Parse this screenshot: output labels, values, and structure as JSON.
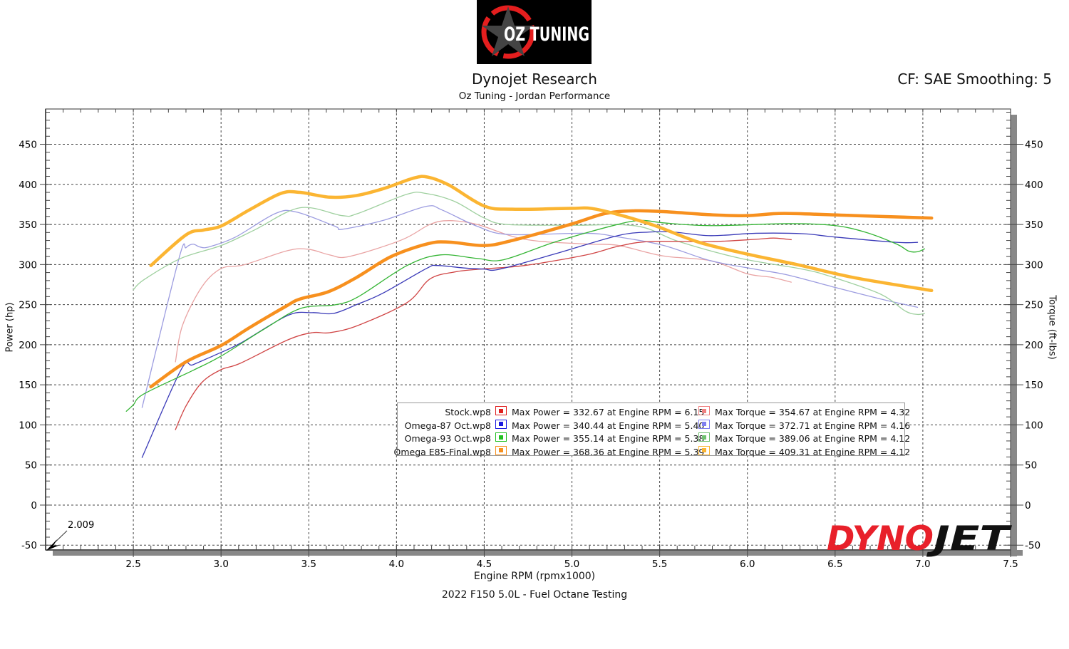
{
  "header": {
    "logo_text": "OZ TUNING",
    "title": "Dynojet Research",
    "subtitle": "Oz Tuning - Jordan Performance",
    "correction": "CF: SAE Smoothing: 5"
  },
  "footer": "2022 F150 5.0L - Fuel Octane Testing",
  "brand_logo_text": "DYNOJET",
  "chart_data": {
    "type": "line",
    "title": "Dynojet Research",
    "xlabel": "Engine RPM (rpmx1000)",
    "ylabel": "Power (hp)",
    "y2label": "Torque (ft-lbs)",
    "xlim": [
      2.0,
      7.5
    ],
    "ylim": [
      -56,
      494
    ],
    "grid": true,
    "legend_position": "bottom-center",
    "cursor_readout": "2.009",
    "x_ticks": [
      "2.5",
      "3.0",
      "3.5",
      "4.0",
      "4.5",
      "5.0",
      "5.5",
      "6.0",
      "6.5",
      "7.0",
      "7.5"
    ],
    "y_ticks": [
      "-50",
      "0",
      "50",
      "100",
      "150",
      "200",
      "250",
      "300",
      "350",
      "400",
      "450"
    ],
    "series": [
      {
        "name": "Stock.wp8",
        "kind": "power",
        "color": "#d04545",
        "width": 1.3,
        "max_label": "Max Power = 332.67 at Engine RPM = 6.15",
        "points": [
          [
            2.74,
            94
          ],
          [
            2.8,
            123.5
          ],
          [
            2.89,
            152.8
          ],
          [
            3.0,
            168.9
          ],
          [
            3.11,
            176.9
          ],
          [
            3.38,
            206
          ],
          [
            3.52,
            215
          ],
          [
            3.62,
            215
          ],
          [
            3.78,
            224
          ],
          [
            4.06,
            252.5
          ],
          [
            4.19,
            281.9
          ],
          [
            4.33,
            290.7
          ],
          [
            4.46,
            294
          ],
          [
            4.73,
            298.8
          ],
          [
            5.08,
            312
          ],
          [
            5.26,
            322.6
          ],
          [
            5.44,
            328.6
          ],
          [
            5.79,
            328.6
          ],
          [
            6.05,
            331.5
          ],
          [
            6.15,
            333
          ],
          [
            6.25,
            331
          ]
        ]
      },
      {
        "name": "Stock.wp8",
        "kind": "torque",
        "color": "#e9a3a3",
        "width": 1.3,
        "max_label": "Max Torque = 354.67 at Engine RPM = 4.32",
        "points": [
          [
            2.74,
            178.6
          ],
          [
            2.78,
            224
          ],
          [
            2.89,
            272
          ],
          [
            3.0,
            295
          ],
          [
            3.13,
            299.6
          ],
          [
            3.38,
            317.4
          ],
          [
            3.5,
            319
          ],
          [
            3.62,
            312
          ],
          [
            3.73,
            310
          ],
          [
            4.03,
            330.8
          ],
          [
            4.19,
            350
          ],
          [
            4.3,
            354.8
          ],
          [
            4.46,
            350
          ],
          [
            4.73,
            331.5
          ],
          [
            5.08,
            325.6
          ],
          [
            5.26,
            324
          ],
          [
            5.52,
            310.7
          ],
          [
            5.79,
            304.8
          ],
          [
            6.0,
            288.4
          ],
          [
            6.14,
            284
          ],
          [
            6.25,
            278
          ]
        ]
      },
      {
        "name": "Omega-87 Oct.wp8",
        "kind": "power",
        "color": "#3a3ab8",
        "width": 1.3,
        "max_label": "Max Power = 340.44 at Engine RPM = 5.40",
        "points": [
          [
            2.55,
            59.4
          ],
          [
            2.77,
            168
          ],
          [
            2.84,
            175
          ],
          [
            2.97,
            187.5
          ],
          [
            3.11,
            201.8
          ],
          [
            3.38,
            236.5
          ],
          [
            3.52,
            240
          ],
          [
            3.64,
            239
          ],
          [
            3.78,
            250.7
          ],
          [
            3.92,
            264
          ],
          [
            4.17,
            295
          ],
          [
            4.23,
            298.8
          ],
          [
            4.38,
            295.8
          ],
          [
            4.5,
            294.3
          ],
          [
            4.59,
            294.3
          ],
          [
            4.91,
            313.7
          ],
          [
            5.26,
            336
          ],
          [
            5.44,
            340.5
          ],
          [
            5.58,
            340.5
          ],
          [
            5.79,
            336
          ],
          [
            6.05,
            339
          ],
          [
            6.32,
            338.4
          ],
          [
            6.49,
            334.5
          ],
          [
            6.85,
            327.7
          ],
          [
            6.97,
            327.7
          ]
        ]
      },
      {
        "name": "Omega-87 Oct.wp8",
        "kind": "torque",
        "color": "#9c9ce0",
        "width": 1.3,
        "max_label": "Max Torque = 372.71 at Engine RPM = 4.16",
        "points": [
          [
            2.55,
            121.7
          ],
          [
            2.76,
            307.6
          ],
          [
            2.8,
            321
          ],
          [
            2.84,
            325.4
          ],
          [
            2.88,
            321.9
          ],
          [
            2.93,
            322
          ],
          [
            3.08,
            334
          ],
          [
            3.31,
            363.7
          ],
          [
            3.43,
            365.5
          ],
          [
            3.65,
            347.7
          ],
          [
            3.69,
            344
          ],
          [
            3.92,
            354.8
          ],
          [
            4.17,
            372.6
          ],
          [
            4.26,
            368
          ],
          [
            4.46,
            347.7
          ],
          [
            4.64,
            337.5
          ],
          [
            5.08,
            339
          ],
          [
            5.26,
            334.5
          ],
          [
            5.52,
            324
          ],
          [
            5.79,
            304.8
          ],
          [
            6.05,
            294
          ],
          [
            6.23,
            287
          ],
          [
            6.49,
            272
          ],
          [
            6.76,
            257
          ],
          [
            6.97,
            246.7
          ]
        ]
      },
      {
        "name": "Omega-93 Oct.wp8",
        "kind": "power",
        "color": "#35b535",
        "width": 1.3,
        "max_label": "Max Power = 355.14 at Engine RPM = 5.38",
        "points": [
          [
            2.46,
            117
          ],
          [
            2.5,
            125
          ],
          [
            2.56,
            138.6
          ],
          [
            2.84,
            168
          ],
          [
            3.0,
            185.8
          ],
          [
            3.24,
            218.7
          ],
          [
            3.45,
            245
          ],
          [
            3.65,
            249.8
          ],
          [
            3.78,
            259.6
          ],
          [
            4.06,
            298.8
          ],
          [
            4.25,
            312
          ],
          [
            4.46,
            307.6
          ],
          [
            4.61,
            306
          ],
          [
            4.91,
            328.6
          ],
          [
            5.26,
            350
          ],
          [
            5.4,
            355
          ],
          [
            5.52,
            352
          ],
          [
            5.79,
            348.5
          ],
          [
            6.23,
            351
          ],
          [
            6.49,
            348.8
          ],
          [
            6.67,
            340.5
          ],
          [
            6.85,
            325.6
          ],
          [
            6.92,
            316.7
          ],
          [
            6.97,
            316
          ],
          [
            7.01,
            319.6
          ]
        ]
      },
      {
        "name": "Omega-93 Oct.wp8",
        "kind": "torque",
        "color": "#9fd09f",
        "width": 1.3,
        "max_label": "Max Torque = 389.06 at Engine RPM = 4.12",
        "points": [
          [
            2.5,
            268.5
          ],
          [
            2.56,
            281
          ],
          [
            2.77,
            307.6
          ],
          [
            3.0,
            323.7
          ],
          [
            3.19,
            343
          ],
          [
            3.45,
            370.8
          ],
          [
            3.69,
            361
          ],
          [
            3.78,
            363.7
          ],
          [
            4.06,
            387.7
          ],
          [
            4.17,
            388.6
          ],
          [
            4.33,
            378.8
          ],
          [
            4.5,
            358
          ],
          [
            4.63,
            350
          ],
          [
            5.0,
            349
          ],
          [
            5.37,
            348
          ],
          [
            5.61,
            328.6
          ],
          [
            5.96,
            307.7
          ],
          [
            6.32,
            294
          ],
          [
            6.49,
            284
          ],
          [
            6.76,
            263
          ],
          [
            6.9,
            242
          ],
          [
            6.97,
            237.8
          ],
          [
            7.01,
            239
          ]
        ]
      },
      {
        "name": "Omega E85-Final.wp8",
        "kind": "power",
        "color": "#f7901e",
        "width": 4.5,
        "max_label": "Max Power = 368.36 at Engine RPM = 5.39",
        "points": [
          [
            2.6,
            147.5
          ],
          [
            2.8,
            178.6
          ],
          [
            3.0,
            199
          ],
          [
            3.16,
            221
          ],
          [
            3.37,
            248
          ],
          [
            3.45,
            257
          ],
          [
            3.61,
            266
          ],
          [
            3.77,
            283.6
          ],
          [
            3.97,
            310
          ],
          [
            4.18,
            326
          ],
          [
            4.3,
            328
          ],
          [
            4.5,
            323.7
          ],
          [
            4.66,
            330
          ],
          [
            4.99,
            350
          ],
          [
            5.19,
            363.7
          ],
          [
            5.36,
            367
          ],
          [
            5.52,
            366
          ],
          [
            5.8,
            362
          ],
          [
            6.0,
            361
          ],
          [
            6.21,
            363.7
          ],
          [
            6.61,
            361
          ],
          [
            7.05,
            358
          ]
        ]
      },
      {
        "name": "Omega E85-Final.wp8",
        "kind": "torque",
        "color": "#fbb532",
        "width": 4.5,
        "max_label": "Max Torque = 409.31 at Engine RPM = 4.12",
        "points": [
          [
            2.6,
            298.8
          ],
          [
            2.8,
            337
          ],
          [
            2.9,
            343
          ],
          [
            3.0,
            348
          ],
          [
            3.16,
            368
          ],
          [
            3.34,
            388.6
          ],
          [
            3.45,
            390
          ],
          [
            3.62,
            384
          ],
          [
            3.77,
            386
          ],
          [
            3.93,
            395
          ],
          [
            4.1,
            408
          ],
          [
            4.18,
            409
          ],
          [
            4.3,
            399
          ],
          [
            4.5,
            373
          ],
          [
            4.66,
            369
          ],
          [
            4.99,
            370
          ],
          [
            5.11,
            370
          ],
          [
            5.27,
            362
          ],
          [
            5.48,
            348
          ],
          [
            5.72,
            328
          ],
          [
            6.0,
            313
          ],
          [
            6.29,
            299.6
          ],
          [
            6.61,
            283.6
          ],
          [
            7.05,
            267.6
          ]
        ]
      }
    ],
    "legend": [
      {
        "file": "Stock.wp8",
        "power": "Max Power = 332.67 at Engine RPM = 6.15",
        "torque": "Max Torque = 354.67 at Engine RPM = 4.32",
        "power_color": "#e02020",
        "torque_color": "#f08080"
      },
      {
        "file": "Omega-87 Oct.wp8",
        "power": "Max Power = 340.44 at Engine RPM = 5.40",
        "torque": "Max Torque = 372.71 at Engine RPM = 4.16",
        "power_color": "#1a1ae0",
        "torque_color": "#8080f0"
      },
      {
        "file": "Omega-93 Oct.wp8",
        "power": "Max Power = 355.14 at Engine RPM = 5.38",
        "torque": "Max Torque = 389.06 at Engine RPM = 4.12",
        "power_color": "#20c020",
        "torque_color": "#70c070"
      },
      {
        "file": "Omega E85-Final.wp8",
        "power": "Max Power = 368.36 at Engine RPM = 5.39",
        "torque": "Max Torque = 409.31 at Engine RPM = 4.12",
        "power_color": "#f7901e",
        "torque_color": "#fbb532"
      }
    ]
  }
}
